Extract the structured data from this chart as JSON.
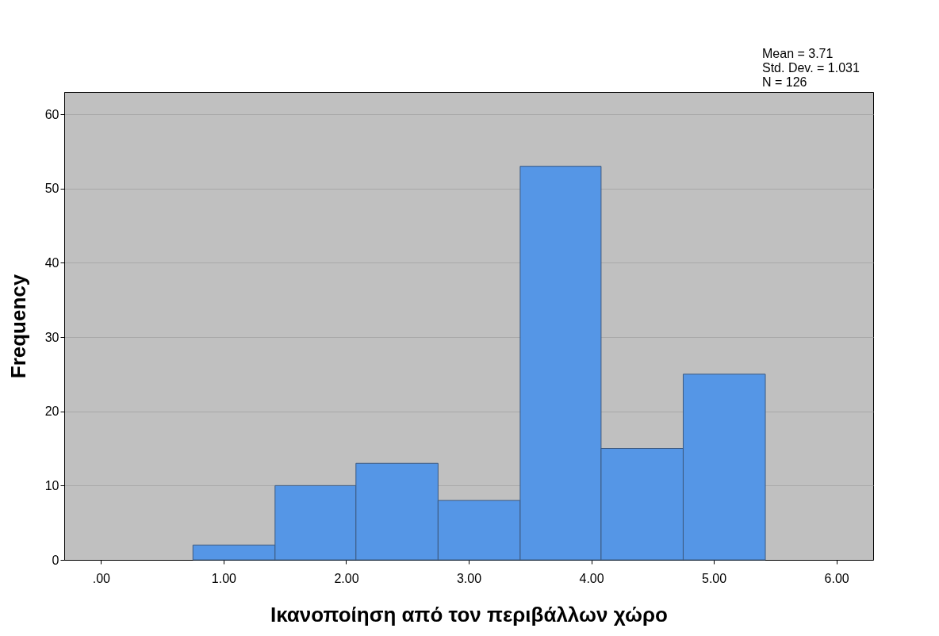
{
  "chart_data": {
    "type": "histogram",
    "xlabel": "Ικανοποίηση από τον περιβάλλων χώρο",
    "ylabel": "Frequency",
    "bins": [
      0.75,
      1.42,
      2.08,
      2.75,
      3.42,
      4.08,
      4.75,
      5.42
    ],
    "values": [
      2,
      10,
      13,
      8,
      53,
      15,
      25
    ],
    "color": "#5596e6",
    "xlim": [
      -0.3,
      6.3
    ],
    "xticks": [
      {
        "value": 0,
        "label": ".00"
      },
      {
        "value": 1,
        "label": "1.00"
      },
      {
        "value": 2,
        "label": "2.00"
      },
      {
        "value": 3,
        "label": "3.00"
      },
      {
        "value": 4,
        "label": "4.00"
      },
      {
        "value": 5,
        "label": "5.00"
      },
      {
        "value": 6,
        "label": "6.00"
      }
    ],
    "ylim": [
      0,
      63
    ],
    "yticks": [
      0,
      10,
      20,
      30,
      40,
      50,
      60
    ],
    "grid": "y",
    "annotations": [
      "Mean = 3.71",
      "Std. Dev. = 1.031",
      "N = 126"
    ]
  }
}
